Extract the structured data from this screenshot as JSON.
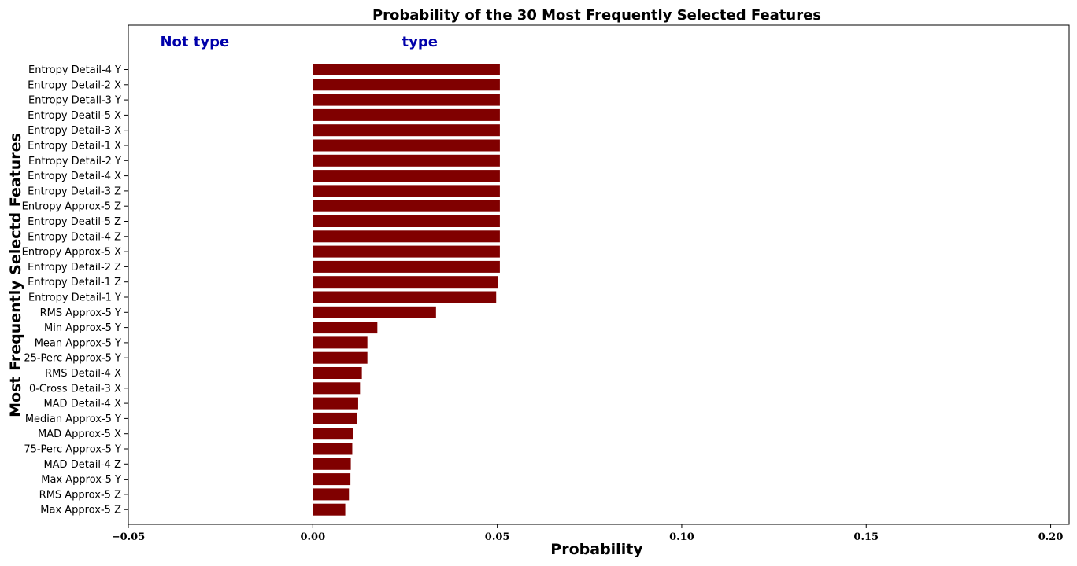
{
  "chart_data": {
    "type": "bar",
    "orientation": "horizontal",
    "title": "Probability of the 30 Most Frequently Selected Features",
    "xlabel": "Probability",
    "ylabel": "Most Frequently Selectd Features",
    "xlim": [
      -0.05,
      0.205
    ],
    "xticks": [
      -0.05,
      0.0,
      0.05,
      0.1,
      0.15,
      0.2
    ],
    "xtick_labels": [
      "−0.05",
      "0.00",
      "0.05",
      "0.10",
      "0.15",
      "0.20"
    ],
    "grid": false,
    "bar_color": "#800000",
    "annotations": [
      {
        "text": "Not type",
        "color": "#0000aa",
        "x": -0.032
      },
      {
        "text": "type",
        "color": "#0000aa",
        "x": 0.029
      }
    ],
    "categories": [
      "Entropy Detail-4 Y",
      "Entropy Detail-2 X",
      "Entropy Detail-3 Y",
      "Entropy Deatil-5 X",
      "Entropy Detail-3 X",
      "Entropy Detail-1 X",
      "Entropy Detail-2 Y",
      "Entropy Detail-4 X",
      "Entropy Detail-3 Z",
      "Entropy Approx-5 Z",
      "Entropy Deatil-5 Z",
      "Entropy Detail-4 Z",
      "Entropy Approx-5 X",
      "Entropy Detail-2 Z",
      "Entropy Detail-1 Z",
      "Entropy Detail-1 Y",
      "RMS Approx-5 Y",
      "Min Approx-5 Y",
      "Mean Approx-5 Y",
      "25-Perc Approx-5 Y",
      "RMS Detail-4 X",
      "0-Cross Detail-3 X",
      "MAD Detail-4 X",
      "Median Approx-5 Y",
      "MAD Approx-5 X",
      "75-Perc Approx-5 Y",
      "MAD Detail-4 Z",
      "Max Approx-5 Y",
      "RMS Approx-5 Z",
      "Max Approx-5 Z"
    ],
    "values": [
      0.0507,
      0.0507,
      0.0507,
      0.0507,
      0.0507,
      0.0507,
      0.0507,
      0.0507,
      0.0507,
      0.0507,
      0.0507,
      0.0507,
      0.0507,
      0.0507,
      0.0502,
      0.0497,
      0.0334,
      0.0175,
      0.0148,
      0.0148,
      0.0133,
      0.0128,
      0.0123,
      0.012,
      0.011,
      0.0107,
      0.0103,
      0.0102,
      0.0098,
      0.0088
    ]
  }
}
